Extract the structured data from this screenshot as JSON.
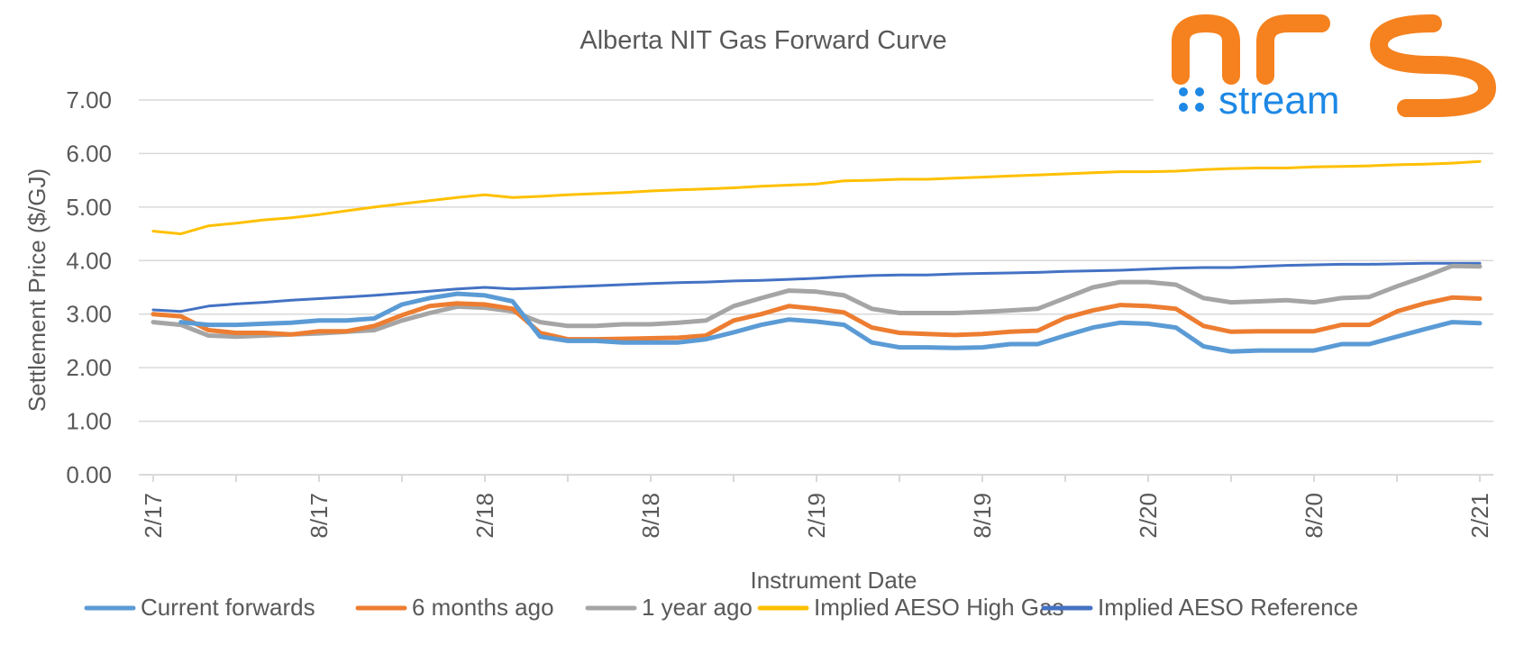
{
  "logo": {
    "wordmark": "nrg",
    "subtitle": "stream",
    "primary_color": "#f5821f",
    "secondary_color": "#1e88e5"
  },
  "chart_data": {
    "type": "line",
    "title": "Alberta NIT Gas Forward Curve",
    "xlabel": "Instrument Date",
    "ylabel": "Settlement Price ($/GJ)",
    "ylim": [
      0,
      7
    ],
    "y_ticks": [
      "0.00",
      "1.00",
      "2.00",
      "3.00",
      "4.00",
      "5.00",
      "6.00",
      "7.00"
    ],
    "x_ticks": [
      "2/17",
      "8/17",
      "2/18",
      "8/18",
      "2/19",
      "8/19",
      "2/20",
      "8/20",
      "2/21"
    ],
    "x_range": [
      "2017-02",
      "2021-02"
    ],
    "grid": "horizontal",
    "legend_position": "bottom",
    "x": [
      "2017-02",
      "2017-03",
      "2017-04",
      "2017-05",
      "2017-06",
      "2017-07",
      "2017-08",
      "2017-09",
      "2017-10",
      "2017-11",
      "2017-12",
      "2018-01",
      "2018-02",
      "2018-03",
      "2018-04",
      "2018-05",
      "2018-06",
      "2018-07",
      "2018-08",
      "2018-09",
      "2018-10",
      "2018-11",
      "2018-12",
      "2019-01",
      "2019-02",
      "2019-03",
      "2019-04",
      "2019-05",
      "2019-06",
      "2019-07",
      "2019-08",
      "2019-09",
      "2019-10",
      "2019-11",
      "2019-12",
      "2020-01",
      "2020-02",
      "2020-03",
      "2020-04",
      "2020-05",
      "2020-06",
      "2020-07",
      "2020-08",
      "2020-09",
      "2020-10",
      "2020-11",
      "2020-12",
      "2021-01",
      "2021-02"
    ],
    "series": [
      {
        "name": "Current forwards",
        "color": "#5b9bd5",
        "values": [
          null,
          2.85,
          2.8,
          2.8,
          2.82,
          2.84,
          2.88,
          2.88,
          2.92,
          3.18,
          3.3,
          3.38,
          3.35,
          3.24,
          2.58,
          2.5,
          2.5,
          2.47,
          2.47,
          2.47,
          2.53,
          2.66,
          2.8,
          2.9,
          2.86,
          2.8,
          2.47,
          2.38,
          2.38,
          2.37,
          2.38,
          2.44,
          2.44,
          2.6,
          2.75,
          2.84,
          2.82,
          2.75,
          2.4,
          2.3,
          2.32,
          2.32,
          2.32,
          2.44,
          2.44,
          2.58,
          2.72,
          2.85,
          2.83
        ]
      },
      {
        "name": "6 months ago",
        "color": "#ed7d31",
        "values": [
          3.0,
          2.96,
          2.7,
          2.65,
          2.65,
          2.62,
          2.68,
          2.68,
          2.78,
          2.98,
          3.15,
          3.2,
          3.18,
          3.1,
          2.65,
          2.53,
          2.53,
          2.54,
          2.55,
          2.56,
          2.6,
          2.88,
          3.0,
          3.15,
          3.1,
          3.03,
          2.75,
          2.65,
          2.63,
          2.61,
          2.63,
          2.67,
          2.69,
          2.93,
          3.07,
          3.17,
          3.15,
          3.1,
          2.78,
          2.67,
          2.68,
          2.68,
          2.68,
          2.8,
          2.8,
          3.05,
          3.2,
          3.31,
          3.29
        ]
      },
      {
        "name": "1 year ago",
        "color": "#a5a5a5",
        "values": [
          2.85,
          2.8,
          2.6,
          2.58,
          2.6,
          2.62,
          2.64,
          2.67,
          2.7,
          2.88,
          3.02,
          3.14,
          3.12,
          3.05,
          2.85,
          2.78,
          2.78,
          2.81,
          2.81,
          2.84,
          2.88,
          3.15,
          3.3,
          3.44,
          3.42,
          3.35,
          3.1,
          3.02,
          3.02,
          3.02,
          3.04,
          3.07,
          3.1,
          3.3,
          3.5,
          3.6,
          3.6,
          3.55,
          3.3,
          3.22,
          3.24,
          3.26,
          3.22,
          3.3,
          3.32,
          3.52,
          3.7,
          3.9,
          3.89
        ]
      },
      {
        "name": "Implied AESO High Gas",
        "color": "#ffc000",
        "values": [
          4.55,
          4.5,
          4.65,
          4.7,
          4.76,
          4.8,
          4.86,
          4.93,
          5.0,
          5.06,
          5.12,
          5.18,
          5.23,
          5.18,
          5.2,
          5.23,
          5.25,
          5.27,
          5.3,
          5.32,
          5.34,
          5.36,
          5.39,
          5.41,
          5.43,
          5.49,
          5.5,
          5.52,
          5.52,
          5.54,
          5.56,
          5.58,
          5.6,
          5.62,
          5.64,
          5.66,
          5.66,
          5.67,
          5.7,
          5.72,
          5.73,
          5.73,
          5.75,
          5.76,
          5.77,
          5.79,
          5.8,
          5.82,
          5.85
        ]
      },
      {
        "name": "Implied AESO Reference",
        "color": "#4472c4",
        "values": [
          3.08,
          3.05,
          3.15,
          3.19,
          3.22,
          3.26,
          3.29,
          3.32,
          3.35,
          3.39,
          3.43,
          3.47,
          3.5,
          3.47,
          3.49,
          3.51,
          3.53,
          3.55,
          3.57,
          3.59,
          3.6,
          3.62,
          3.63,
          3.65,
          3.67,
          3.7,
          3.72,
          3.73,
          3.73,
          3.75,
          3.76,
          3.77,
          3.78,
          3.8,
          3.81,
          3.82,
          3.84,
          3.86,
          3.87,
          3.87,
          3.89,
          3.91,
          3.92,
          3.93,
          3.93,
          3.94,
          3.95,
          3.95,
          3.95
        ]
      }
    ]
  }
}
